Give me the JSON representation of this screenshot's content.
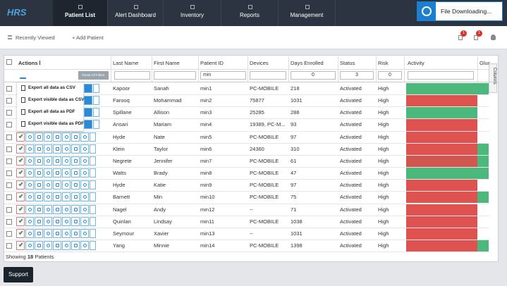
{
  "nav": {
    "logo": "HRS",
    "tabs": [
      "Patient List",
      "Alert Dashboard",
      "Inventory",
      "Reports",
      "Management"
    ],
    "active": 0
  },
  "notification": "File Downloading...",
  "toolbar": {
    "recently_viewed": "Recently Viewed",
    "add_patient": "+ Add Patient",
    "badges": [
      "1",
      "1"
    ]
  },
  "table": {
    "columns": [
      "Actions",
      "Last Name",
      "First Name",
      "Patient ID",
      "Devices",
      "Days Enrolled",
      "Status",
      "Risk",
      "Activity",
      "Gluc"
    ],
    "reset_filters": "Reset All Filters",
    "filters": {
      "patient_id": "min",
      "days_enrolled": "0",
      "status": "3",
      "risk": "0"
    },
    "columns_tab": "Columns",
    "export_menu": [
      "Export all data as CSV",
      "Export visible data as CSV",
      "Export all data as PDF",
      "Export visible data as PDF"
    ],
    "rows": [
      {
        "last": "Kapoor",
        "first": "Sanah",
        "id": "min1",
        "devices": "PC-MOBILE",
        "days": "218",
        "status": "Activated",
        "risk": "High",
        "activity": "#4cb87c",
        "gluc": "#4cb87c"
      },
      {
        "last": "Farooq",
        "first": "Mohammad",
        "id": "min2",
        "devices": "75877",
        "days": "1031",
        "status": "Activated",
        "risk": "High",
        "activity": "#de5250",
        "gluc": "#ffffff"
      },
      {
        "last": "Spillane",
        "first": "Allison",
        "id": "min3",
        "devices": "25285",
        "days": "288",
        "status": "Activated",
        "risk": "High",
        "activity": "#4cb87c",
        "gluc": "#ffffff"
      },
      {
        "last": "Ansari",
        "first": "Mariam",
        "id": "min4",
        "devices": "19389, PC-M...",
        "days": "93",
        "status": "Activated",
        "risk": "High",
        "activity": "#de5250",
        "gluc": "#ffffff"
      },
      {
        "last": "Hyde",
        "first": "Nate",
        "id": "min5",
        "devices": "PC-MOBILE",
        "days": "97",
        "status": "Activated",
        "risk": "High",
        "activity": "#de5250",
        "gluc": "#ffffff"
      },
      {
        "last": "Klein",
        "first": "Taylor",
        "id": "min6",
        "devices": "24360",
        "days": "310",
        "status": "Activated",
        "risk": "High",
        "activity": "#de5250",
        "gluc": "#4cb87c"
      },
      {
        "last": "Negrete",
        "first": "Jennifer",
        "id": "min7",
        "devices": "PC-MOBILE",
        "days": "61",
        "status": "Activated",
        "risk": "High",
        "activity": "#d0564f",
        "gluc": "#4cb87c"
      },
      {
        "last": "Watts",
        "first": "Brady",
        "id": "min8",
        "devices": "PC-MOBILE",
        "days": "47",
        "status": "Activated",
        "risk": "High",
        "activity": "#4cb87c",
        "gluc": "#4cb87c"
      },
      {
        "last": "Hyde",
        "first": "Katie",
        "id": "min9",
        "devices": "PC-MOBILE",
        "days": "97",
        "status": "Activated",
        "risk": "High",
        "activity": "#de5250",
        "gluc": "#ffffff"
      },
      {
        "last": "Barnett",
        "first": "Min",
        "id": "min10",
        "devices": "PC-MOBILE",
        "days": "75",
        "status": "Activated",
        "risk": "High",
        "activity": "#de5250",
        "gluc": "#4cb87c"
      },
      {
        "last": "Nagel",
        "first": "Andy",
        "id": "min12",
        "devices": "--",
        "days": "71",
        "status": "Activated",
        "risk": "High",
        "activity": "#de5250",
        "gluc": "#ffffff"
      },
      {
        "last": "Quinlan",
        "first": "Lindsay",
        "id": "min11",
        "devices": "PC-MOBILE",
        "days": "1038",
        "status": "Activated",
        "risk": "High",
        "activity": "#de5250",
        "gluc": "#ffffff"
      },
      {
        "last": "Seymour",
        "first": "Xavier",
        "id": "min13",
        "devices": "--",
        "days": "1031",
        "status": "Activated",
        "risk": "High",
        "activity": "#de5250",
        "gluc": "#ffffff"
      },
      {
        "last": "Yang",
        "first": "Minnie",
        "id": "min14",
        "devices": "PC-MOBILE",
        "days": "1398",
        "status": "Activated",
        "risk": "High",
        "activity": "#de5250",
        "gluc": "#4cb87c"
      }
    ]
  },
  "footer": {
    "showing": "Showing",
    "count": "18",
    "unit": "Patients"
  },
  "support": "Support"
}
